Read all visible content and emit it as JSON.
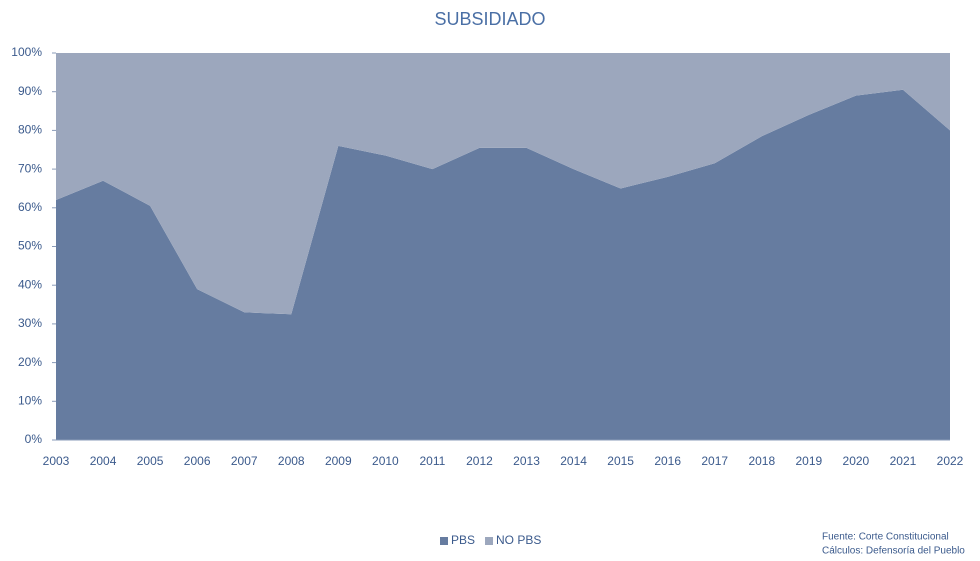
{
  "chart_data": {
    "type": "stacked_area",
    "title": "SUBSIDIADO",
    "categories": [
      "2003",
      "2004",
      "2005",
      "2006",
      "2007",
      "2008",
      "2009",
      "2010",
      "2011",
      "2012",
      "2013",
      "2014",
      "2015",
      "2016",
      "2017",
      "2018",
      "2019",
      "2020",
      "2021",
      "2022"
    ],
    "series": [
      {
        "name": "PBS",
        "color": "#667ca0",
        "values": [
          62,
          67,
          60.5,
          39,
          33,
          32.5,
          76,
          73.5,
          70,
          75.5,
          75.5,
          70,
          65,
          68,
          71.5,
          78.5,
          84,
          89,
          90.5,
          80
        ]
      },
      {
        "name": "NO PBS",
        "color": "#9ca7bd",
        "values": [
          38,
          33,
          39.5,
          61,
          67,
          67.5,
          24,
          26.5,
          30,
          24.5,
          24.5,
          30,
          35,
          32,
          28.5,
          21.5,
          16,
          11,
          9.5,
          20
        ]
      }
    ],
    "ylim": [
      0,
      100
    ],
    "yticks": [
      {
        "value": 0,
        "label": "0%"
      },
      {
        "value": 10,
        "label": "10%"
      },
      {
        "value": 20,
        "label": "20%"
      },
      {
        "value": 30,
        "label": "30%"
      },
      {
        "value": 40,
        "label": "40%"
      },
      {
        "value": 50,
        "label": "50%"
      },
      {
        "value": 60,
        "label": "60%"
      },
      {
        "value": 70,
        "label": "70%"
      },
      {
        "value": 80,
        "label": "80%"
      },
      {
        "value": 90,
        "label": "90%"
      },
      {
        "value": 100,
        "label": "100%"
      }
    ],
    "legend": "bottom",
    "notes": [
      "Fuente: Corte Constitucional",
      "Cálculos: Defensoría del Pueblo"
    ]
  }
}
